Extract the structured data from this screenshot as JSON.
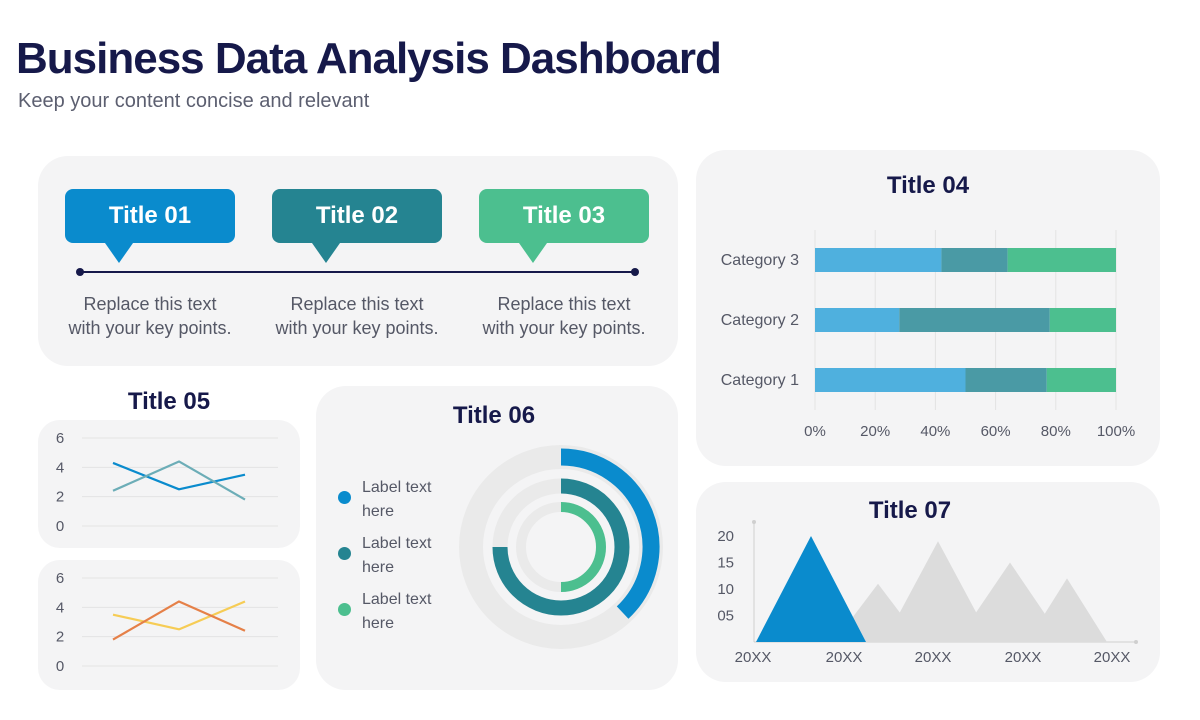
{
  "page": {
    "title": "Business Data Analysis Dashboard",
    "subtitle": "Keep your content concise and relevant"
  },
  "steps": [
    {
      "title": "Title 01",
      "color": "#0a8bcd",
      "text1": "Replace this text",
      "text2": "with your key points."
    },
    {
      "title": "Title 02",
      "color": "#258491",
      "text1": "Replace this text",
      "text2": "with your key points."
    },
    {
      "title": "Title 03",
      "color": "#4cbf8f",
      "text1": "Replace this text",
      "text2": "with your key points."
    }
  ],
  "colors": {
    "blue": "#0a8bcd",
    "teal": "#258491",
    "green": "#4cbf8f",
    "blue_light": "#4fb0de",
    "teal_mid": "#4a9aa5",
    "yellow": "#f6cc55",
    "orange": "#e58048",
    "gray": "#dcdcdc",
    "navy": "#16194a"
  },
  "chart_data": [
    {
      "id": "title04",
      "type": "bar",
      "orientation": "horizontal",
      "stacked": true,
      "title": "Title 04",
      "categories": [
        "Category 3",
        "Category 2",
        "Category 1"
      ],
      "series": [
        {
          "values": [
            42,
            28,
            50
          ]
        },
        {
          "values": [
            22,
            50,
            27
          ]
        },
        {
          "values": [
            36,
            22,
            23
          ]
        }
      ],
      "xlim": [
        0,
        100
      ],
      "xticks": [
        "0%",
        "20%",
        "40%",
        "60%",
        "80%",
        "100%"
      ],
      "grid": true
    },
    {
      "id": "title05a",
      "type": "line",
      "title": "Title 05",
      "x": [
        1,
        2,
        3
      ],
      "series": [
        {
          "values": [
            4.3,
            2.5,
            3.5
          ]
        },
        {
          "values": [
            2.4,
            4.4,
            1.8
          ]
        }
      ],
      "ylim": [
        0,
        6
      ],
      "yticks": [
        "0",
        "2",
        "4",
        "6"
      ],
      "grid": true
    },
    {
      "id": "title05b",
      "type": "line",
      "x": [
        1,
        2,
        3
      ],
      "series": [
        {
          "values": [
            3.5,
            2.5,
            4.4
          ]
        },
        {
          "values": [
            1.8,
            4.4,
            2.4
          ]
        }
      ],
      "ylim": [
        0,
        6
      ],
      "yticks": [
        "0",
        "2",
        "4",
        "6"
      ],
      "grid": true
    },
    {
      "id": "title06",
      "type": "pie",
      "subtype": "radial-progress",
      "title": "Title 06",
      "series": [
        {
          "name": "Label text here",
          "value": 0.38
        },
        {
          "name": "Label text here",
          "value": 0.75
        },
        {
          "name": "Label text here",
          "value": 0.5
        }
      ]
    },
    {
      "id": "title07",
      "type": "area",
      "subtype": "triangle",
      "title": "Title 07",
      "categories": [
        "20XX",
        "20XX",
        "20XX",
        "20XX",
        "20XX"
      ],
      "values": [
        20,
        11,
        19,
        15,
        12
      ],
      "ylim": [
        0,
        20
      ],
      "yticks": [
        "05",
        "10",
        "15",
        "20"
      ],
      "highlight_index": 0
    }
  ]
}
